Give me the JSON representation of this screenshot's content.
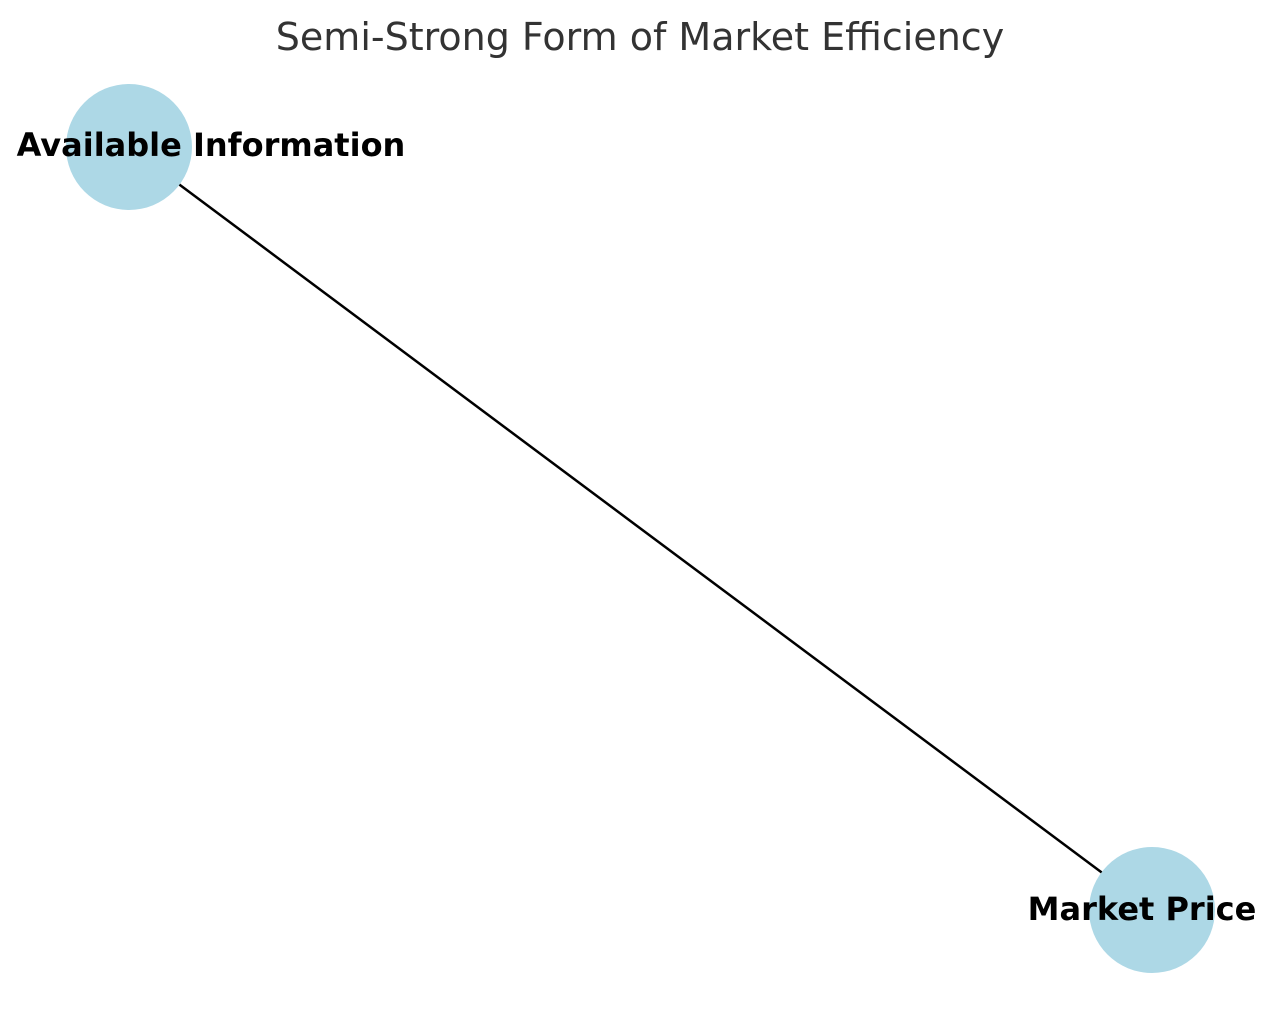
{
  "title": "Semi-Strong Form of Market Efficiency",
  "colors": {
    "node_fill": "#add8e6",
    "edge": "#000000",
    "title": "#333333",
    "label": "#000000"
  },
  "nodes": [
    {
      "id": "available_information",
      "label": "Available Information"
    },
    {
      "id": "market_price",
      "label": "Market Price"
    }
  ],
  "edges": [
    {
      "from": "available_information",
      "to": "market_price"
    }
  ]
}
